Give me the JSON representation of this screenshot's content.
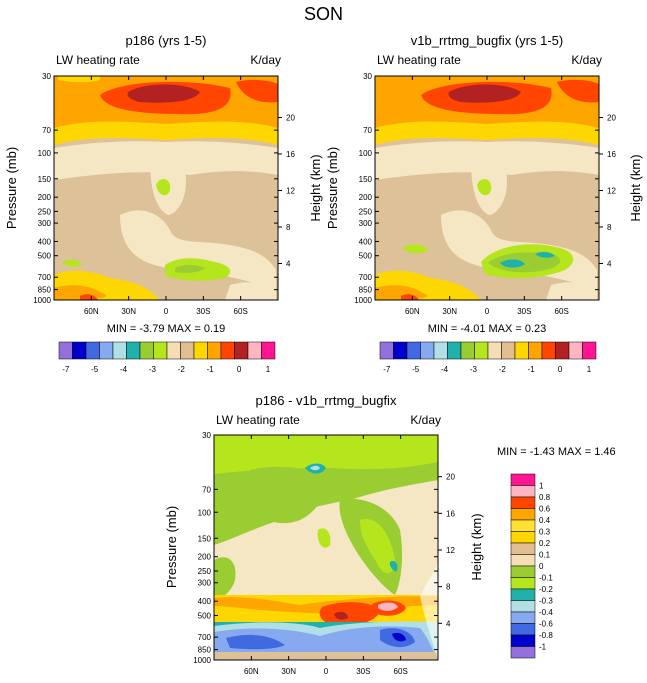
{
  "figure_title": "SON",
  "chart_data": [
    {
      "type": "heatmap",
      "title": "p186 (yrs 1-5)",
      "left_label": "LW heating rate",
      "right_label": "K/day",
      "ylabel": "Pressure (mb)",
      "y2label": "Height (km)",
      "x_ticks": [
        "60N",
        "30N",
        "0",
        "30S",
        "60S"
      ],
      "x_values": [
        60,
        30,
        0,
        -30,
        -60
      ],
      "xlim": [
        90,
        -90
      ],
      "y_ticks": [
        "30",
        "70",
        "100",
        "150",
        "200",
        "250",
        "300",
        "400",
        "500",
        "700",
        "850",
        "1000"
      ],
      "y_values": [
        30,
        70,
        100,
        150,
        200,
        250,
        300,
        400,
        500,
        700,
        850,
        1000
      ],
      "ylim": [
        30,
        1000
      ],
      "y2_ticks": [
        "20",
        "16",
        "12",
        "8",
        "4"
      ],
      "y2_values": [
        20,
        16,
        12,
        8,
        4
      ],
      "stats_text": "MIN = -3.79  MAX =  0.19",
      "min": -3.79,
      "max": 0.19
    },
    {
      "type": "heatmap",
      "title": "v1b_rrtmg_bugfix (yrs 1-5)",
      "left_label": "LW heating rate",
      "right_label": "K/day",
      "ylabel": "Pressure (mb)",
      "y2label": "Height (km)",
      "x_ticks": [
        "60N",
        "30N",
        "0",
        "30S",
        "60S"
      ],
      "x_values": [
        60,
        30,
        0,
        -30,
        -60
      ],
      "xlim": [
        90,
        -90
      ],
      "y_ticks": [
        "30",
        "70",
        "100",
        "150",
        "200",
        "250",
        "300",
        "400",
        "500",
        "700",
        "850",
        "1000"
      ],
      "y_values": [
        30,
        70,
        100,
        150,
        200,
        250,
        300,
        400,
        500,
        700,
        850,
        1000
      ],
      "ylim": [
        30,
        1000
      ],
      "y2_ticks": [
        "20",
        "16",
        "12",
        "8",
        "4"
      ],
      "y2_values": [
        20,
        16,
        12,
        8,
        4
      ],
      "stats_text": "MIN = -4.01  MAX =  0.23",
      "min": -4.01,
      "max": 0.23
    },
    {
      "type": "heatmap",
      "title": "p186 - v1b_rrtmg_bugfix",
      "left_label": "LW heating rate",
      "right_label": "K/day",
      "ylabel": "Pressure (mb)",
      "y2label": "Height (km)",
      "x_ticks": [
        "60N",
        "30N",
        "0",
        "30S",
        "60S"
      ],
      "x_values": [
        60,
        30,
        0,
        -30,
        -60
      ],
      "xlim": [
        90,
        -90
      ],
      "y_ticks": [
        "30",
        "70",
        "100",
        "150",
        "200",
        "250",
        "300",
        "400",
        "500",
        "700",
        "850",
        "1000"
      ],
      "y_values": [
        30,
        70,
        100,
        150,
        200,
        250,
        300,
        400,
        500,
        700,
        850,
        1000
      ],
      "ylim": [
        30,
        1000
      ],
      "y2_ticks": [
        "20",
        "16",
        "12",
        "8",
        "4"
      ],
      "y2_values": [
        20,
        16,
        12,
        8,
        4
      ],
      "stats_text": "MIN = -1.43  MAX =  1.46",
      "min": -1.43,
      "max": 1.46
    }
  ],
  "legend_top": {
    "colors": [
      "#9370db",
      "#0000cd",
      "#4169e1",
      "#87a9ef",
      "#b0e0e6",
      "#20b2aa",
      "#9acd32",
      "#b5e61d",
      "#f5deb3",
      "#e1bd90",
      "#ffd700",
      "#ffa500",
      "#ff4500",
      "#b22222",
      "#ffb6c1",
      "#ff1493"
    ],
    "labels": [
      "-7",
      "-5",
      "-4",
      "-3",
      "-2",
      "-1",
      "0",
      "1"
    ]
  },
  "legend_diff": {
    "colors": [
      "#9370db",
      "#0000cd",
      "#4169e1",
      "#87a9ef",
      "#b0e0e6",
      "#20b2aa",
      "#b5e61d",
      "#9acd32",
      "#f5deb3",
      "#e1bd90",
      "#ffd700",
      "#ffe135",
      "#ffa500",
      "#ff4500",
      "#ffb6c1",
      "#ff1493"
    ],
    "labels": [
      "1",
      "0.8",
      "0.6",
      "0.4",
      "0.3",
      "0.2",
      "0.1",
      "0",
      "-0.1",
      "-0.2",
      "-0.3",
      "-0.4",
      "-0.6",
      "-0.8",
      "-1"
    ]
  },
  "colors": {
    "tan": "#dcc199",
    "wheat": "#f5e6c4",
    "gold": "#ffd700",
    "orange": "#ff9f00",
    "redorange": "#ff4500",
    "darkred": "#b22222",
    "lime": "#9acd32",
    "yellowgreen": "#b5e61d",
    "teal": "#20b2aa",
    "lightblue": "#b0e0e6",
    "blue": "#4169e1",
    "pink": "#ffb6c1"
  }
}
